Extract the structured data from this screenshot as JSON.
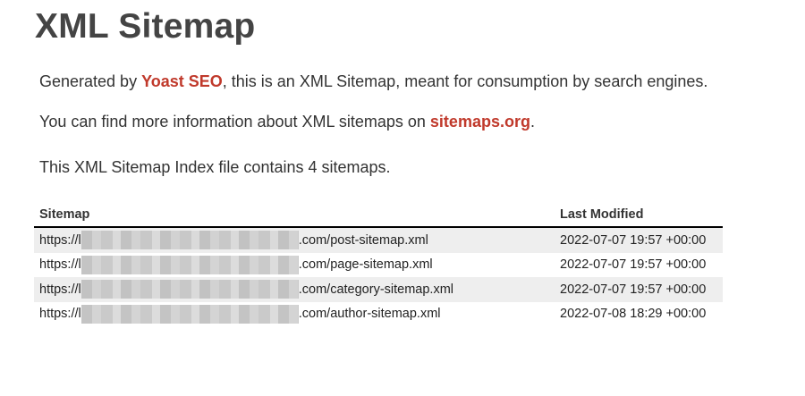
{
  "title": "XML Sitemap",
  "intro": {
    "prefix": "Generated by ",
    "link": "Yoast SEO",
    "suffix": ", this is an XML Sitemap, meant for consumption by search engines."
  },
  "info": {
    "prefix": "You can find more information about XML sitemaps on ",
    "link": "sitemaps.org",
    "suffix": "."
  },
  "count_text": "This XML Sitemap Index file contains 4 sitemaps.",
  "table": {
    "headers": {
      "sitemap": "Sitemap",
      "last_modified": "Last Modified"
    },
    "rows": [
      {
        "url_start": "https://l",
        "url_end": ".com/post-sitemap.xml",
        "modified": "2022-07-07 19:57 +00:00"
      },
      {
        "url_start": "https://l",
        "url_end": ".com/page-sitemap.xml",
        "modified": "2022-07-07 19:57 +00:00"
      },
      {
        "url_start": "https://l",
        "url_end": ".com/category-sitemap.xml",
        "modified": "2022-07-07 19:57 +00:00"
      },
      {
        "url_start": "https://l",
        "url_end": ".com/author-sitemap.xml",
        "modified": "2022-07-08 18:29 +00:00"
      }
    ]
  },
  "colors": {
    "link": "#c0392b",
    "row_alt": "#eeeeee"
  }
}
